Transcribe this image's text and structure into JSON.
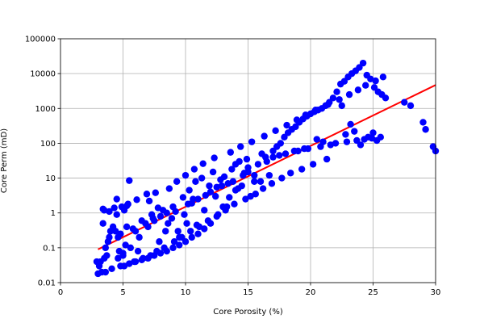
{
  "chart_data": {
    "type": "scatter",
    "title": "",
    "xlabel": "Core Porosity (%)",
    "ylabel": "Core Perm (mD)",
    "xlim": [
      0,
      30
    ],
    "ylim": [
      0.01,
      100000
    ],
    "y_scale": "log",
    "grid": true,
    "x_ticks": [
      "0",
      "5",
      "10",
      "15",
      "20",
      "25",
      "30"
    ],
    "y_ticks": [
      "0.01",
      "0.1",
      "1",
      "10",
      "100",
      "1000",
      "10000",
      "100000"
    ],
    "colors": {
      "points": "#0000ff",
      "fit_line": "#ff0000"
    },
    "fit_line": {
      "x": [
        3,
        30
      ],
      "y": [
        0.09,
        4700
      ]
    },
    "series": [
      {
        "x": [
          2.9,
          3.1,
          3.3,
          3.5,
          3.4,
          3.7,
          3.2,
          3.6,
          3.9,
          4.2,
          4.0,
          3.8,
          4.5,
          4.7,
          4.9,
          5.1,
          4.4,
          4.6,
          5.3,
          5.5,
          5.0,
          4.8,
          5.2,
          3.5,
          3.9,
          4.3,
          4.6,
          5.0,
          5.4,
          5.8,
          6.2,
          6.0,
          6.5,
          6.8,
          7.1,
          7.3,
          7.6,
          7.8,
          7.9,
          8.2,
          8.4,
          8.6,
          8.9,
          9.2,
          9.5,
          9.8,
          10.1,
          10.3,
          10.5,
          10.8,
          11.0,
          11.3,
          11.6,
          11.9,
          12.2,
          12.5,
          12.8,
          13.1,
          13.4,
          13.7,
          14.0,
          14.3,
          14.6,
          14.9,
          4.8,
          5.6,
          6.3,
          7.0,
          7.5,
          8.0,
          8.5,
          9.0,
          9.4,
          9.9,
          10.2,
          10.6,
          11.1,
          11.5,
          12.0,
          12.4,
          12.9,
          13.3,
          13.8,
          14.2,
          14.7,
          15.0,
          15.2,
          15.5,
          15.8,
          16.1,
          16.4,
          16.7,
          17.0,
          17.3,
          17.6,
          17.9,
          18.2,
          18.5,
          18.8,
          19.1,
          19.4,
          19.7,
          20.0,
          20.3,
          20.6,
          20.9,
          21.2,
          21.5,
          21.8,
          22.1,
          22.4,
          22.7,
          23.0,
          23.3,
          23.6,
          23.9,
          24.2,
          24.5,
          24.8,
          25.1,
          25.4,
          25.7,
          26.0,
          27.5,
          28.0,
          29.0,
          29.2,
          29.8,
          30.0,
          22.5,
          23.2,
          24.6,
          25.3,
          22.8,
          23.5,
          24.0,
          25.0,
          21.0,
          20.5,
          19.5,
          18.7,
          18.0,
          17.5,
          17.0,
          16.5,
          16.0,
          15.5,
          15.0,
          14.5,
          14.0,
          13.5,
          13.0,
          12.5,
          12.0,
          11.5,
          11.0,
          10.5,
          10.0,
          9.5,
          9.0,
          8.5,
          8.0,
          7.5,
          7.0,
          6.5,
          6.0,
          5.5,
          19.0,
          19.8,
          20.8,
          21.6,
          22.0,
          22.9,
          23.7,
          24.3,
          24.9,
          25.6,
          21.3,
          20.2,
          19.3,
          18.4,
          17.7,
          16.9,
          16.2,
          15.6,
          14.8,
          13.9,
          13.2,
          12.6,
          11.8,
          10.9,
          10.4,
          9.7,
          9.1,
          8.3,
          7.7,
          7.2,
          6.6,
          5.9,
          5.1,
          4.1,
          3.6,
          3.0,
          3.4,
          4.5,
          5.3,
          6.1,
          6.9,
          7.4,
          8.7,
          9.3,
          10.0,
          10.7,
          11.4,
          12.3,
          13.6,
          14.4,
          15.3,
          16.3,
          17.2,
          18.1,
          18.9,
          19.6,
          20.4,
          21.4,
          22.3,
          23.1,
          23.8,
          24.4,
          25.2,
          25.8
        ],
        "y": [
          0.04,
          0.03,
          0.02,
          0.05,
          1.3,
          0.06,
          0.04,
          0.1,
          0.2,
          0.4,
          0.3,
          0.15,
          2.5,
          0.08,
          1.5,
          1.2,
          0.3,
          0.2,
          0.4,
          8.5,
          0.06,
          0.25,
          0.12,
          1.2,
          1.1,
          1.4,
          0.05,
          0.07,
          1.8,
          0.35,
          0.08,
          0.3,
          0.6,
          0.5,
          2.2,
          0.9,
          3.8,
          1.4,
          0.15,
          1.2,
          0.3,
          0.5,
          0.7,
          1.1,
          0.2,
          2.8,
          0.5,
          4.5,
          1.9,
          8,
          2.5,
          10,
          3.2,
          6,
          15,
          5.5,
          9,
          11,
          7,
          18,
          25,
          30,
          12,
          35,
          0.03,
          0.1,
          0.2,
          0.4,
          0.6,
          0.8,
          1.0,
          1.5,
          0.3,
          0.9,
          1.8,
          2.5,
          0.4,
          1.2,
          4,
          3,
          6,
          1.5,
          8,
          5,
          14,
          20,
          3,
          8,
          25,
          50,
          40,
          12,
          60,
          80,
          100,
          150,
          200,
          250,
          300,
          400,
          500,
          600,
          700,
          800,
          900,
          1000,
          1200,
          1500,
          2000,
          3000,
          5000,
          6000,
          8000,
          10000,
          12000,
          15000,
          20000,
          9000,
          7000,
          4000,
          3000,
          2500,
          2000,
          1500,
          1200,
          400,
          250,
          80,
          60,
          1200,
          350,
          150,
          120,
          180,
          220,
          90,
          200,
          110,
          130,
          70,
          60,
          50,
          45,
          40,
          30,
          8,
          12,
          15,
          6,
          4.5,
          2.8,
          1.5,
          0.8,
          0.5,
          0.35,
          0.25,
          0.2,
          0.15,
          0.12,
          0.1,
          0.08,
          0.07,
          0.06,
          0.05,
          0.045,
          0.04,
          0.035,
          60,
          70,
          80,
          90,
          100,
          110,
          120,
          130,
          140,
          150,
          35,
          25,
          18,
          14,
          10,
          7,
          5,
          3.5,
          2.5,
          1.8,
          1.2,
          0.9,
          0.6,
          0.45,
          0.3,
          0.2,
          0.15,
          0.1,
          0.08,
          0.06,
          0.05,
          0.04,
          0.03,
          0.025,
          0.02,
          0.018,
          0.5,
          0.9,
          1.6,
          2.4,
          3.5,
          0.7,
          5,
          8,
          12,
          18,
          26,
          38,
          55,
          80,
          110,
          160,
          230,
          330,
          470,
          650,
          900,
          1300,
          1800,
          2500,
          3400,
          4600,
          6200,
          8000
        ]
      }
    ]
  }
}
